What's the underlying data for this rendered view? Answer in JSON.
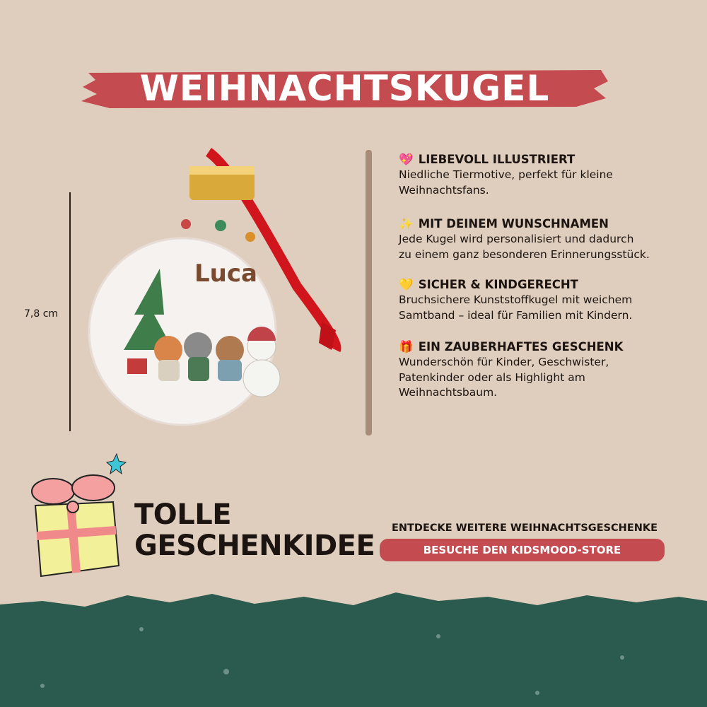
{
  "title": "WEIHNACHTSKUGEL",
  "product": {
    "name_on_ornament": "Luca",
    "size_label": "7,8 cm"
  },
  "features": [
    {
      "icon": "sparkling-heart-icon",
      "emoji": "💖",
      "heading": "LIEBEVOLL ILLUSTRIERT",
      "lines": [
        "Niedliche Tiermotive, perfekt für kleine",
        "Weihnachtsfans."
      ]
    },
    {
      "icon": "sparkles-icon",
      "emoji": "✨",
      "heading": "MIT DEINEM WUNSCHNAMEN",
      "lines": [
        "Jede Kugel wird personalisiert und dadurch",
        "zu einem ganz besonderen Erinnerungsstück."
      ]
    },
    {
      "icon": "yellow-heart-icon",
      "emoji": "💛",
      "heading": "SICHER & KINDGERECHT",
      "lines": [
        "Bruchsichere Kunststoffkugel mit weichem",
        "Samtband – ideal für Familien mit Kindern."
      ]
    },
    {
      "icon": "gift-icon",
      "emoji": "🎁",
      "heading": "EIN ZAUBERHAFTES GESCHENK",
      "lines": [
        "Wunderschön für Kinder, Geschwister,",
        "Patenkinder oder als Highlight am",
        "Weihnachtsbaum."
      ]
    }
  ],
  "promo": {
    "headline_1": "TOLLE",
    "headline_2": "GESCHENKIDEE",
    "discover": "ENTDECKE WEITERE WEIHNACHTSGESCHENKE",
    "button": "BESUCHE DEN KIDSMOOD-STORE"
  },
  "colors": {
    "background": "#dfcebd",
    "accent_red": "#c44c50",
    "footer_green": "#2b5b4e",
    "name_brown": "#7a4a30"
  }
}
